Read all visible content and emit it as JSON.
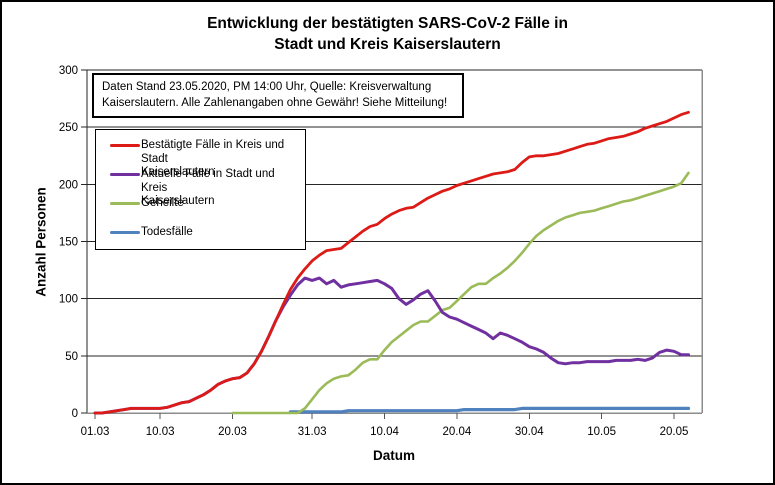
{
  "title": {
    "line1": "Entwicklung der bestätigten SARS-CoV-2 Fälle in",
    "line2": "Stadt und Kreis Kaiserslautern"
  },
  "note": {
    "line1": "Daten Stand 23.05.2020, PM 14:00 Uhr, Quelle: Kreisverwaltung",
    "line2": "Kaiserslautern. Alle Zahlenangaben ohne Gewähr! Siehe Mitteilung!"
  },
  "chart_data": {
    "type": "line",
    "title": "Entwicklung der bestätigten SARS-CoV-2 Fälle in Stadt und Kreis Kaiserslautern",
    "xlabel": "Datum",
    "ylabel": "Anzahl Personen",
    "ylim": [
      0,
      300
    ],
    "yticks": [
      0,
      50,
      100,
      150,
      200,
      250,
      300
    ],
    "grid": "horizontal",
    "legend_position": "inside-top-left",
    "x_unit": "daily values, 01.03.2020 to 22.05.2020 (index 0 = 01.03)",
    "xticks": [
      {
        "index": 0,
        "label": "01.03"
      },
      {
        "index": 9,
        "label": "10.03"
      },
      {
        "index": 19,
        "label": "20.03"
      },
      {
        "index": 30,
        "label": "31.03"
      },
      {
        "index": 40,
        "label": "10.04"
      },
      {
        "index": 50,
        "label": "20.04"
      },
      {
        "index": 60,
        "label": "30.04"
      },
      {
        "index": 70,
        "label": "10.05"
      },
      {
        "index": 80,
        "label": "20.05"
      }
    ],
    "series": [
      {
        "name": "Bestätigte Fälle in Kreis und Stadt Kaiserslautern",
        "legend_label": "Bestätigte Fälle in Kreis und Stadt\nKaiserslautern",
        "color": "#dc1b17",
        "start_index": 0,
        "values": [
          0,
          0,
          1,
          2,
          3,
          4,
          4,
          4,
          4,
          4,
          5,
          7,
          9,
          10,
          13,
          16,
          20,
          25,
          28,
          30,
          31,
          35,
          43,
          54,
          67,
          81,
          95,
          108,
          118,
          126,
          133,
          138,
          142,
          143,
          144,
          149,
          154,
          159,
          163,
          165,
          170,
          174,
          177,
          179,
          180,
          184,
          188,
          191,
          194,
          196,
          199,
          201,
          203,
          205,
          207,
          209,
          210,
          211,
          213,
          219,
          224,
          225,
          225,
          226,
          227,
          229,
          231,
          233,
          235,
          236,
          238,
          240,
          241,
          242,
          244,
          246,
          249,
          251,
          253,
          255,
          258,
          261,
          263
        ]
      },
      {
        "name": "Aktuelle Fälle in Stadt und Kreis Kaiserslautern",
        "legend_label": "Aktuelle Fälle in Stadt und Kreis\nKaiserslautern",
        "color": "#7030a0",
        "start_index": 0,
        "values": [
          0,
          0,
          1,
          2,
          3,
          4,
          4,
          4,
          4,
          4,
          5,
          7,
          9,
          10,
          13,
          16,
          20,
          25,
          28,
          30,
          31,
          35,
          43,
          54,
          67,
          81,
          93,
          103,
          112,
          118,
          116,
          118,
          113,
          116,
          110,
          112,
          113,
          114,
          115,
          116,
          113,
          109,
          100,
          95,
          99,
          104,
          107,
          98,
          88,
          84,
          82,
          79,
          76,
          73,
          70,
          65,
          70,
          68,
          65,
          62,
          58,
          56,
          53,
          48,
          44,
          43,
          44,
          44,
          45,
          45,
          45,
          45,
          46,
          46,
          46,
          47,
          46,
          48,
          53,
          55,
          54,
          51,
          51
        ]
      },
      {
        "name": "Geheilte",
        "legend_label": "Geheilte",
        "color": "#9bbb59",
        "start_index": 19,
        "values": [
          0,
          0,
          0,
          0,
          0,
          0,
          0,
          0,
          0,
          0,
          4,
          12,
          20,
          26,
          30,
          32,
          33,
          38,
          44,
          47,
          47,
          55,
          62,
          67,
          72,
          77,
          80,
          80,
          85,
          90,
          92,
          98,
          104,
          110,
          113,
          113,
          118,
          122,
          127,
          133,
          140,
          148,
          155,
          160,
          164,
          168,
          171,
          173,
          175,
          176,
          177,
          179,
          181,
          183,
          185,
          186,
          188,
          190,
          192,
          194,
          196,
          198,
          201,
          210
        ]
      },
      {
        "name": "Todesfälle",
        "legend_label": "Todesfälle",
        "color": "#4f81bd",
        "start_index": 27,
        "values": [
          1,
          1,
          1,
          1,
          1,
          1,
          1,
          1,
          2,
          2,
          2,
          2,
          2,
          2,
          2,
          2,
          2,
          2,
          2,
          2,
          2,
          2,
          2,
          2,
          3,
          3,
          3,
          3,
          3,
          3,
          3,
          3,
          4,
          4,
          4,
          4,
          4,
          4,
          4,
          4,
          4,
          4,
          4,
          4,
          4,
          4,
          4,
          4,
          4,
          4,
          4,
          4,
          4,
          4,
          4,
          4
        ]
      }
    ]
  }
}
